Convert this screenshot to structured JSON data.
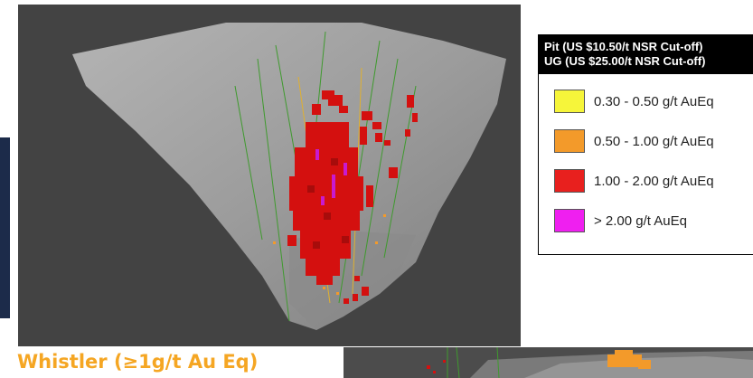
{
  "legend": {
    "header_line1": "Pit (US $10.50/t NSR Cut-off)",
    "header_line2": "UG (US $25.00/t NSR Cut-off)",
    "items": [
      {
        "label": "0.30 - 0.50 g/t AuEq",
        "color": "#f6f53a"
      },
      {
        "label": "0.50 - 1.00 g/t AuEq",
        "color": "#f39a2a"
      },
      {
        "label": "1.00 - 2.00 g/t AuEq",
        "color": "#e8201e"
      },
      {
        "label": "> 2.00 g/t AuEq",
        "color": "#ef1ff0"
      }
    ]
  },
  "caption": {
    "text": "Whistler (≥1g/t Au Eq)",
    "color": "#f5a623"
  },
  "colors": {
    "background_view": "#434343",
    "pit_shell": "#9a9a9a",
    "block_red": "#d4100f",
    "block_magenta": "#c81ad0",
    "drillhole": "#3f9a2e",
    "left_bar": "#1c2b4a"
  }
}
